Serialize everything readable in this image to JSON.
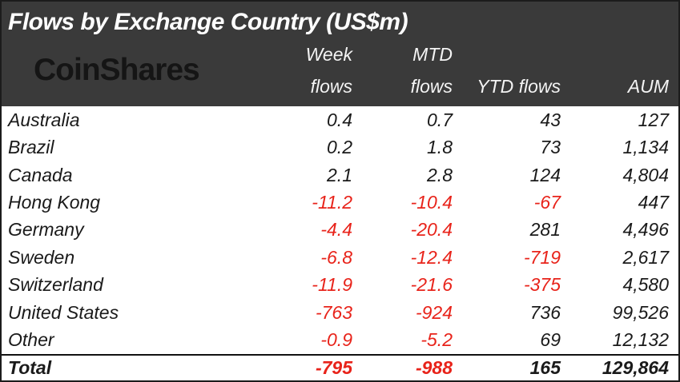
{
  "title": "Flows by Exchange Country (US$m)",
  "logo_text": "CoinShares",
  "columns": {
    "week": {
      "line1": "Week",
      "line2": "flows"
    },
    "mtd": {
      "line1": "MTD",
      "line2": "flows"
    },
    "ytd": {
      "line1": "",
      "line2": "YTD flows"
    },
    "aum": {
      "line1": "",
      "line2": "AUM"
    }
  },
  "rows": [
    {
      "country": "Australia",
      "week": "0.4",
      "mtd": "0.7",
      "ytd": "43",
      "aum": "127"
    },
    {
      "country": "Brazil",
      "week": "0.2",
      "mtd": "1.8",
      "ytd": "73",
      "aum": "1,134"
    },
    {
      "country": "Canada",
      "week": "2.1",
      "mtd": "2.8",
      "ytd": "124",
      "aum": "4,804"
    },
    {
      "country": "Hong Kong",
      "week": "-11.2",
      "mtd": "-10.4",
      "ytd": "-67",
      "aum": "447"
    },
    {
      "country": "Germany",
      "week": "-4.4",
      "mtd": "-20.4",
      "ytd": "281",
      "aum": "4,496"
    },
    {
      "country": "Sweden",
      "week": "-6.8",
      "mtd": "-12.4",
      "ytd": "-719",
      "aum": "2,617"
    },
    {
      "country": "Switzerland",
      "week": "-11.9",
      "mtd": "-21.6",
      "ytd": "-375",
      "aum": "4,580"
    },
    {
      "country": "United States",
      "week": "-763",
      "mtd": "-924",
      "ytd": "736",
      "aum": "99,526"
    },
    {
      "country": "Other",
      "week": "-0.9",
      "mtd": "-5.2",
      "ytd": "69",
      "aum": "12,132"
    }
  ],
  "total": {
    "country": "Total",
    "week": "-795",
    "mtd": "-988",
    "ytd": "165",
    "aum": "129,864"
  },
  "colors": {
    "header_bg": "#3a3a3a",
    "header_text": "#ffffff",
    "logo_color": "#151515",
    "body_text": "#1a1a1a",
    "negative": "#e8231a"
  }
}
